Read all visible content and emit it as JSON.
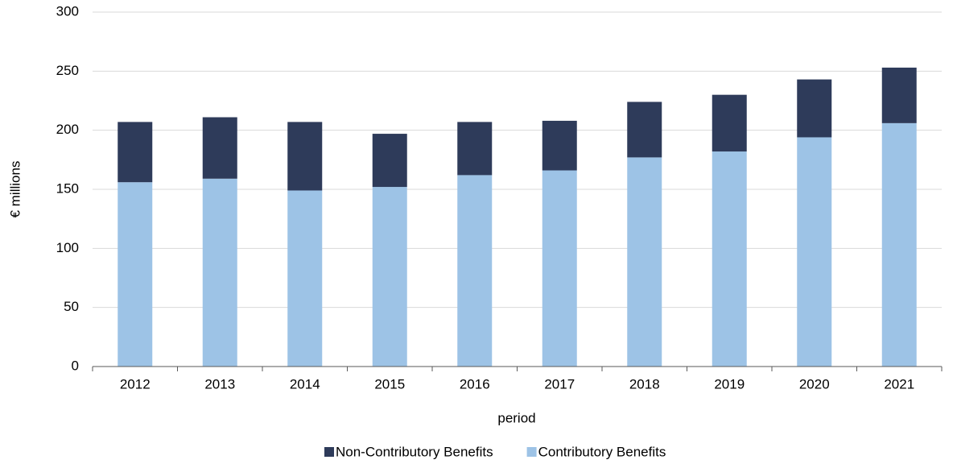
{
  "chart_data": {
    "type": "stacked_bar",
    "categories": [
      "2012",
      "2013",
      "2014",
      "2015",
      "2016",
      "2017",
      "2018",
      "2019",
      "2020",
      "2021"
    ],
    "series": [
      {
        "name": "Non-Contributory Benefits",
        "color": "#2e3b5a",
        "values": [
          51,
          52,
          58,
          45,
          45,
          42,
          47,
          48,
          49,
          47
        ]
      },
      {
        "name": "Contributory Benefits",
        "color": "#9dc3e6",
        "values": [
          156,
          159,
          149,
          152,
          162,
          166,
          177,
          182,
          194,
          206
        ]
      }
    ],
    "y_label": "€ millions",
    "x_label": "period",
    "ylim": [
      0,
      300
    ],
    "yticks": [
      0,
      50,
      100,
      150,
      200,
      250,
      300
    ],
    "grid": true,
    "legend": "bottom"
  }
}
